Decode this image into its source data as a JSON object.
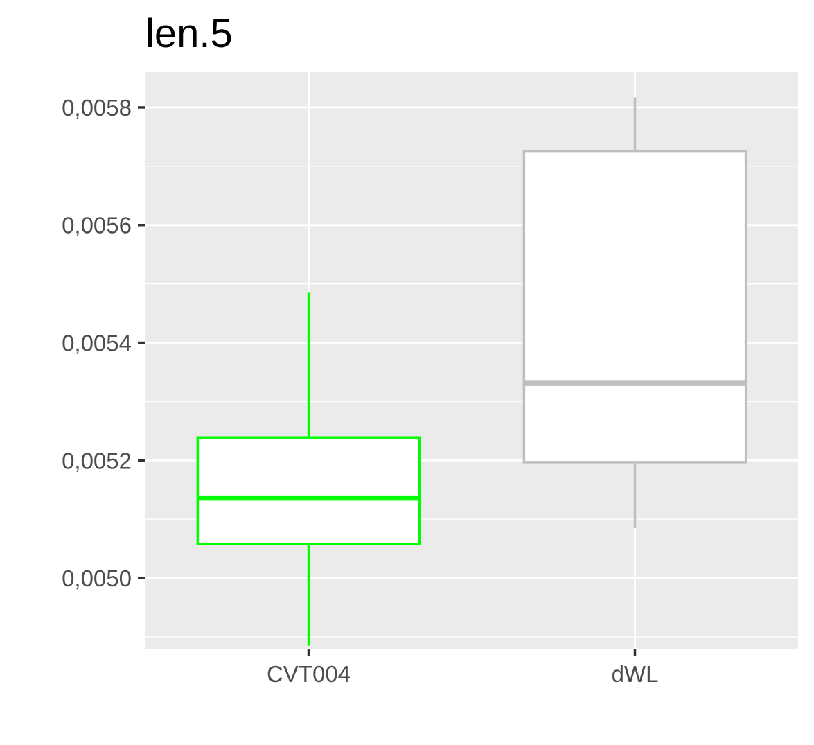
{
  "chart_data": {
    "type": "boxplot",
    "title": "len.5",
    "xlabel": "",
    "ylabel": "",
    "ylim": [
      0.00488,
      0.00586
    ],
    "y_ticks": [
      0.005,
      0.0052,
      0.0054,
      0.0056,
      0.0058
    ],
    "y_tick_labels": [
      "0,0050",
      "0,0052",
      "0,0054",
      "0,0056",
      "0,0058"
    ],
    "categories": [
      "CVT004",
      "dWL"
    ],
    "boxes": [
      {
        "category": "CVT004",
        "whisker_low": 0.004885,
        "q1": 0.005058,
        "median": 0.005136,
        "q3": 0.005239,
        "whisker_high": 0.005485,
        "color": "#00ff00"
      },
      {
        "category": "dWL",
        "whisker_low": 0.005085,
        "q1": 0.005197,
        "median": 0.005331,
        "q3": 0.005725,
        "whisker_high": 0.005817,
        "color": "#bebebe"
      }
    ],
    "colors": {
      "panel_bg": "#ebebeb",
      "grid": "#ffffff",
      "box_fill": "#ffffff",
      "axis_text": "#4d4d4d",
      "ticks": "#333333"
    },
    "grid": true,
    "legend": "none"
  }
}
